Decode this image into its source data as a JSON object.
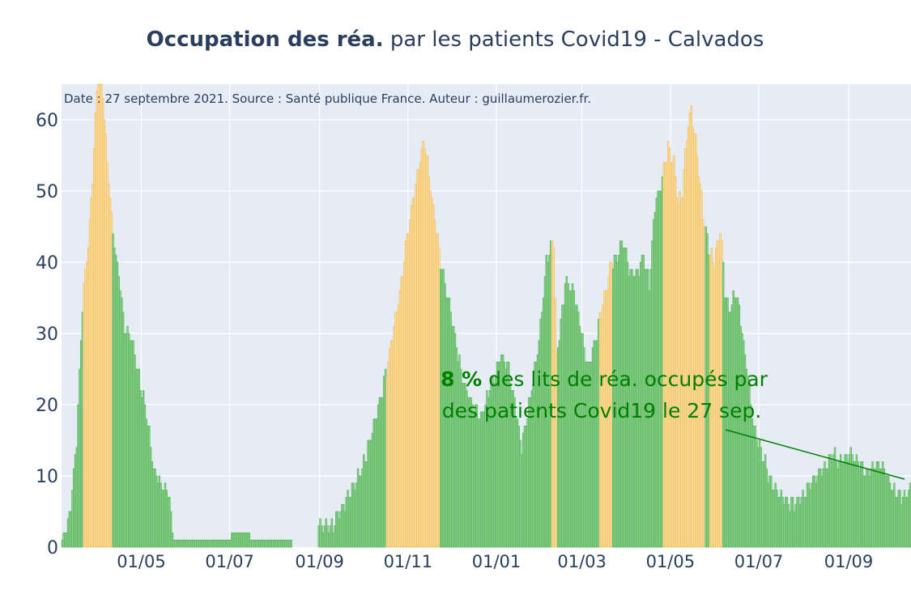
{
  "colors": {
    "plot_bg": "#e5ecf6",
    "grid": "#ffffff",
    "text": "#2a3f5f",
    "green_bar": "#4caf50",
    "green_fill": "#8fd18f",
    "orange_bar": "#f2b441",
    "orange_fill": "#fbe3b0",
    "annotation": "#008000"
  },
  "chart_data": {
    "type": "bar",
    "title_bold": "Occupation des réa.",
    "title_rest": " par les patients Covid19 - Calvados",
    "source_text": "Date : 27 septembre 2021. Source : Santé publique France. Auteur : guillaumerozier.fr.",
    "ylabel": "",
    "xlabel": "",
    "ylim": [
      0,
      65
    ],
    "xlim_days": [
      -11,
      575
    ],
    "x_origin": "2020-03-18",
    "y_ticks": [
      0,
      10,
      20,
      30,
      40,
      50,
      60
    ],
    "x_ticks": [
      {
        "label": "01/05",
        "day": 44
      },
      {
        "label": "01/07",
        "day": 105
      },
      {
        "label": "01/09",
        "day": 167
      },
      {
        "label": "01/11",
        "day": 228
      },
      {
        "label": "01/01",
        "day": 289
      },
      {
        "label": "01/03",
        "day": 348
      },
      {
        "label": "01/05",
        "day": 409
      },
      {
        "label": "01/07",
        "day": 470
      },
      {
        "label": "01/09",
        "day": 532
      }
    ],
    "orange_threshold_note": "bars colored orange when occupation rate high",
    "keypoints": [
      [
        -11,
        1
      ],
      [
        -6,
        4
      ],
      [
        -1,
        15
      ],
      [
        3,
        34
      ],
      [
        8,
        45
      ],
      [
        11,
        56
      ],
      [
        14,
        68
      ],
      [
        17,
        64
      ],
      [
        20,
        54
      ],
      [
        24,
        44
      ],
      [
        28,
        38
      ],
      [
        32,
        31
      ],
      [
        37,
        29
      ],
      [
        42,
        24
      ],
      [
        47,
        19
      ],
      [
        52,
        11
      ],
      [
        57,
        9
      ],
      [
        62,
        8
      ],
      [
        66,
        1
      ],
      [
        100,
        1
      ],
      [
        112,
        2
      ],
      [
        125,
        1
      ],
      [
        145,
        1
      ],
      [
        150,
        0
      ],
      [
        165,
        0
      ],
      [
        166,
        3
      ],
      [
        176,
        3
      ],
      [
        186,
        7
      ],
      [
        196,
        11
      ],
      [
        204,
        17
      ],
      [
        212,
        24
      ],
      [
        220,
        33
      ],
      [
        226,
        42
      ],
      [
        232,
        50
      ],
      [
        236,
        55
      ],
      [
        239,
        57
      ],
      [
        242,
        52
      ],
      [
        246,
        46
      ],
      [
        250,
        40
      ],
      [
        254,
        36
      ],
      [
        258,
        32
      ],
      [
        262,
        27
      ],
      [
        266,
        23
      ],
      [
        272,
        20
      ],
      [
        278,
        18
      ],
      [
        285,
        23
      ],
      [
        292,
        27
      ],
      [
        297,
        25
      ],
      [
        302,
        19
      ],
      [
        306,
        14
      ],
      [
        312,
        21
      ],
      [
        318,
        29
      ],
      [
        323,
        40
      ],
      [
        328,
        43
      ],
      [
        330,
        26
      ],
      [
        336,
        37
      ],
      [
        342,
        36
      ],
      [
        348,
        29
      ],
      [
        352,
        25
      ],
      [
        358,
        30
      ],
      [
        364,
        36
      ],
      [
        368,
        40
      ],
      [
        372,
        41
      ],
      [
        376,
        43
      ],
      [
        380,
        39
      ],
      [
        385,
        38
      ],
      [
        390,
        41
      ],
      [
        394,
        37
      ],
      [
        398,
        48
      ],
      [
        403,
        52
      ],
      [
        407,
        56
      ],
      [
        411,
        54
      ],
      [
        414,
        48
      ],
      [
        417,
        50
      ],
      [
        420,
        58
      ],
      [
        423,
        62
      ],
      [
        427,
        55
      ],
      [
        431,
        47
      ],
      [
        435,
        42
      ],
      [
        439,
        40
      ],
      [
        443,
        45
      ],
      [
        446,
        36
      ],
      [
        449,
        33
      ],
      [
        454,
        36
      ],
      [
        458,
        30
      ],
      [
        462,
        24
      ],
      [
        466,
        17
      ],
      [
        472,
        13
      ],
      [
        478,
        9
      ],
      [
        484,
        7
      ],
      [
        490,
        6
      ],
      [
        496,
        6
      ],
      [
        502,
        8
      ],
      [
        508,
        10
      ],
      [
        514,
        11
      ],
      [
        520,
        13
      ],
      [
        526,
        12
      ],
      [
        532,
        13
      ],
      [
        538,
        12
      ],
      [
        544,
        10
      ],
      [
        550,
        12
      ],
      [
        556,
        11
      ],
      [
        562,
        8
      ],
      [
        568,
        7
      ],
      [
        575,
        8
      ]
    ],
    "orange_ranges": [
      [
        4,
        23
      ],
      [
        213,
        249
      ],
      [
        327,
        330
      ],
      [
        360,
        368
      ],
      [
        404,
        432
      ],
      [
        436,
        444
      ]
    ]
  },
  "annotation": {
    "value_bold": "8  %",
    "line1_rest": " des lits de réa. occupés par",
    "line2": "des patients Covid19 le 27 sep."
  }
}
